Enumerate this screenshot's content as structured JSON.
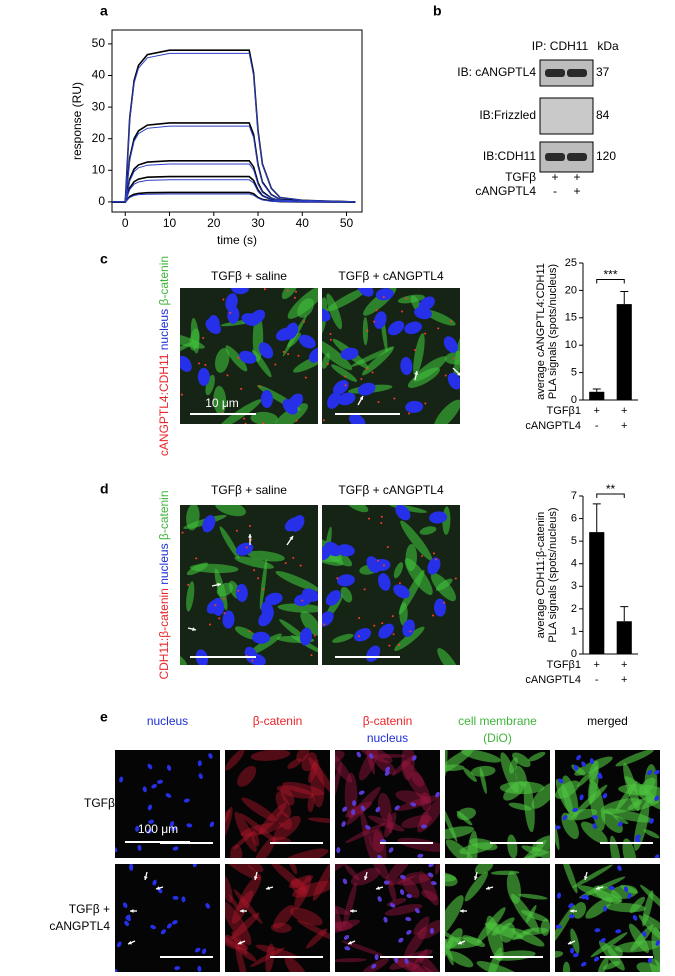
{
  "panels": {
    "a": {
      "label": "a"
    },
    "b": {
      "label": "b",
      "ip": "IP: CDH11",
      "unit": "kDa",
      "rows": [
        {
          "label": "IB: cANGPTL4",
          "kda": "37"
        },
        {
          "label": "IB:Frizzled",
          "kda": "84"
        },
        {
          "label": "IB:CDH11",
          "kda": "120"
        }
      ],
      "conditions": [
        {
          "label": "TGFβ",
          "marks": [
            "+",
            "+"
          ]
        },
        {
          "label": "cANGPTL4",
          "marks": [
            "-",
            "+"
          ]
        }
      ]
    },
    "c": {
      "label": "c",
      "titles": [
        "TGFβ + saline",
        "TGFβ + cANGPTL4"
      ],
      "stain": [
        {
          "text": "cANGPTL4:CDH11",
          "color": "#e8262a"
        },
        {
          "text": "nucleus",
          "color": "#1d2fd6"
        },
        {
          "text": "β-catenin",
          "color": "#3fb43a"
        }
      ],
      "scale": "10 μm"
    },
    "d": {
      "label": "d",
      "titles": [
        "TGFβ + saline",
        "TGFβ + cANGPTL4"
      ],
      "stain": [
        {
          "text": "CDH11:β-catenin",
          "color": "#e8262a"
        },
        {
          "text": "nucleus",
          "color": "#1d2fd6"
        },
        {
          "text": "β-catenin",
          "color": "#3fb43a"
        }
      ]
    },
    "e": {
      "label": "e",
      "columns": [
        [
          {
            "text": "nucleus",
            "color": "#1d2fd6"
          }
        ],
        [
          {
            "text": "β-catenin",
            "color": "#e8262a"
          }
        ],
        [
          {
            "text": "β-catenin",
            "color": "#e8262a"
          },
          {
            "text": "nucleus",
            "color": "#1d2fd6"
          }
        ],
        [
          {
            "text": "cell membrane",
            "color": "#3fb43a"
          },
          {
            "text": "(DiO)",
            "color": "#3fb43a"
          }
        ],
        [
          {
            "text": "merged",
            "color": "#000000"
          }
        ]
      ],
      "rows": [
        [
          "TGFβ"
        ],
        [
          "TGFβ +",
          "cANGPTL4"
        ]
      ],
      "scale": "100 μm"
    }
  },
  "chart_data": [
    {
      "type": "line",
      "xlabel": "time (s)",
      "ylabel": "response (RU)",
      "xlim": [
        -3,
        53.5
      ],
      "ylim": [
        -3.2,
        54.4
      ],
      "xticks": [
        0,
        10,
        20,
        30,
        40,
        50
      ],
      "yticks": [
        0,
        10,
        20,
        30,
        40,
        50
      ],
      "x": [
        -3,
        0,
        1,
        2,
        3,
        5,
        10,
        20,
        28,
        29,
        30,
        31,
        33,
        35,
        40,
        47,
        52
      ],
      "series": [
        {
          "color": "#000000",
          "values": [
            0,
            0,
            26.4,
            38.4,
            43.2,
            46.6,
            48,
            48,
            48,
            40.8,
            22.6,
            12,
            4.3,
            1.4,
            0.5,
            0.2,
            0
          ]
        },
        {
          "color": "#000000",
          "values": [
            0,
            0,
            13.8,
            20,
            22.5,
            24.3,
            25,
            25,
            25,
            21.3,
            11.8,
            6.3,
            2.3,
            0.8,
            0.3,
            0.1,
            0
          ]
        },
        {
          "color": "#000000",
          "values": [
            0,
            0,
            7.2,
            10.4,
            11.7,
            12.6,
            13,
            13,
            13,
            11.1,
            6.1,
            3.3,
            1.2,
            0.4,
            0.1,
            0.1,
            0
          ]
        },
        {
          "color": "#000000",
          "values": [
            0,
            0,
            4.4,
            6.4,
            7.2,
            7.8,
            8,
            8,
            8,
            6.8,
            3.8,
            2,
            0.7,
            0.2,
            0.1,
            0,
            0
          ]
        },
        {
          "color": "#000000",
          "values": [
            0,
            0,
            1.7,
            2.4,
            2.7,
            2.9,
            3,
            3,
            3,
            2.6,
            1.4,
            0.8,
            0.3,
            0.1,
            0,
            0,
            0
          ]
        },
        {
          "color": "#2b3fc9",
          "values": [
            0,
            0,
            25.9,
            37.6,
            42.3,
            45.6,
            47,
            47,
            47,
            40,
            22.1,
            11.8,
            4.2,
            1.4,
            0.5,
            0.2,
            0
          ]
        },
        {
          "color": "#2b3fc9",
          "values": [
            0,
            0,
            13.2,
            19.2,
            21.6,
            23.3,
            24,
            24,
            24,
            20.4,
            11.3,
            6,
            2.2,
            0.7,
            0.2,
            0.1,
            0
          ]
        },
        {
          "color": "#2b3fc9",
          "values": [
            0,
            0,
            6.6,
            9.6,
            10.8,
            11.6,
            12,
            12,
            12,
            10.2,
            5.6,
            3,
            1.1,
            0.4,
            0.1,
            0,
            0
          ]
        },
        {
          "color": "#2b3fc9",
          "values": [
            0,
            0,
            3.9,
            5.6,
            6.3,
            6.8,
            7,
            7,
            7,
            6,
            3.3,
            1.8,
            0.6,
            0.2,
            0.1,
            0,
            0
          ]
        },
        {
          "color": "#2b3fc9",
          "values": [
            0,
            0,
            1.4,
            2,
            2.3,
            2.4,
            2.5,
            2.5,
            2.5,
            2.1,
            1.2,
            0.6,
            0.2,
            0.1,
            0,
            0,
            0
          ]
        }
      ]
    },
    {
      "type": "bar",
      "ylabel": [
        "average cANGPTL4:CDH11",
        "PLA signals (spots/nucleus)"
      ],
      "values": [
        1.5,
        17.5
      ],
      "errors": [
        0.5,
        2.3
      ],
      "color": "#000000",
      "ylim": [
        0,
        25
      ],
      "yticks": [
        0,
        5,
        10,
        15,
        20,
        25
      ],
      "significance": "***",
      "conditions": [
        {
          "label": "TGFβ1",
          "marks": [
            "+",
            "+"
          ]
        },
        {
          "label": "cANGPTL4",
          "marks": [
            "-",
            "+"
          ]
        }
      ]
    },
    {
      "type": "bar",
      "ylabel": [
        "average CDH11:β-catenin",
        "PLA signals (spots/nucleus)"
      ],
      "values": [
        5.4,
        1.45
      ],
      "errors": [
        1.25,
        0.65
      ],
      "color": "#000000",
      "ylim": [
        0,
        7
      ],
      "yticks": [
        0,
        1,
        2,
        3,
        4,
        5,
        6,
        7
      ],
      "significance": "**",
      "conditions": [
        {
          "label": "TGFβ1",
          "marks": [
            "+",
            "+"
          ]
        },
        {
          "label": "cANGPTL4",
          "marks": [
            "-",
            "+"
          ]
        }
      ]
    }
  ]
}
